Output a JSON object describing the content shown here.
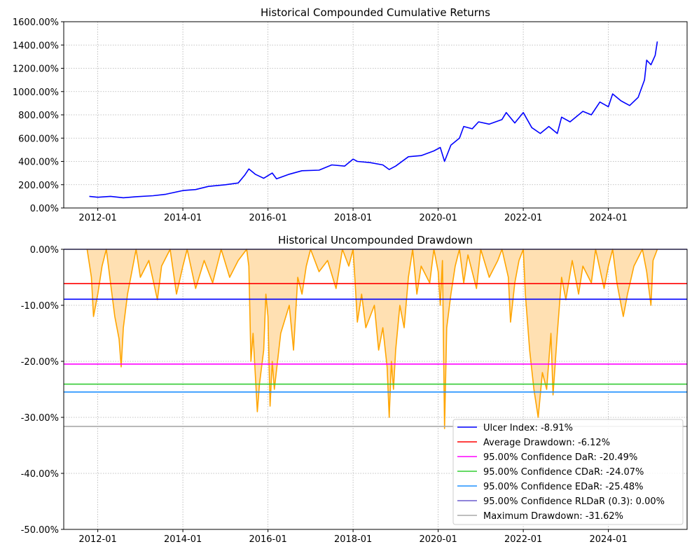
{
  "chart_data": [
    {
      "type": "line",
      "title": "Historical Compounded Cumulative Returns",
      "xlabel": "",
      "ylabel": "",
      "xlim": [
        2011.2,
        2025.85
      ],
      "ylim": [
        0,
        1600
      ],
      "grid": true,
      "color": "#0000ff",
      "x_ticks": [
        {
          "v": 2012,
          "label": "2012-01"
        },
        {
          "v": 2014,
          "label": "2014-01"
        },
        {
          "v": 2016,
          "label": "2016-01"
        },
        {
          "v": 2018,
          "label": "2018-01"
        },
        {
          "v": 2020,
          "label": "2020-01"
        },
        {
          "v": 2022,
          "label": "2022-01"
        },
        {
          "v": 2024,
          "label": "2024-01"
        }
      ],
      "y_ticks": [
        {
          "v": 0,
          "label": "0.00%"
        },
        {
          "v": 200,
          "label": "200.00%"
        },
        {
          "v": 400,
          "label": "400.00%"
        },
        {
          "v": 600,
          "label": "600.00%"
        },
        {
          "v": 800,
          "label": "800.00%"
        },
        {
          "v": 1000,
          "label": "1000.00%"
        },
        {
          "v": 1200,
          "label": "1200.00%"
        },
        {
          "v": 1400,
          "label": "1400.00%"
        },
        {
          "v": 1600,
          "label": "1600.00%"
        }
      ],
      "x": [
        2011.8,
        2012.0,
        2012.3,
        2012.6,
        2012.9,
        2013.3,
        2013.6,
        2014.0,
        2014.3,
        2014.6,
        2015.0,
        2015.3,
        2015.45,
        2015.55,
        2015.7,
        2015.9,
        2016.1,
        2016.2,
        2016.5,
        2016.8,
        2017.2,
        2017.5,
        2017.8,
        2018.0,
        2018.1,
        2018.4,
        2018.7,
        2018.85,
        2019.0,
        2019.3,
        2019.6,
        2019.9,
        2020.05,
        2020.15,
        2020.3,
        2020.5,
        2020.6,
        2020.8,
        2020.95,
        2021.2,
        2021.5,
        2021.6,
        2021.8,
        2022.0,
        2022.2,
        2022.4,
        2022.6,
        2022.8,
        2022.9,
        2023.1,
        2023.4,
        2023.6,
        2023.8,
        2024.0,
        2024.1,
        2024.3,
        2024.5,
        2024.7,
        2024.85,
        2024.9,
        2025.0,
        2025.1,
        2025.15
      ],
      "y": [
        100,
        92,
        100,
        88,
        97,
        105,
        118,
        150,
        158,
        185,
        200,
        215,
        280,
        335,
        290,
        255,
        300,
        250,
        290,
        320,
        325,
        370,
        360,
        420,
        400,
        390,
        370,
        330,
        360,
        440,
        450,
        490,
        520,
        400,
        540,
        600,
        700,
        680,
        740,
        720,
        760,
        820,
        730,
        820,
        690,
        640,
        700,
        640,
        780,
        740,
        830,
        800,
        910,
        870,
        980,
        920,
        880,
        950,
        1100,
        1270,
        1230,
        1310,
        1430
      ]
    },
    {
      "type": "area",
      "title": "Historical Uncompounded Drawdown",
      "xlabel": "",
      "ylabel": "",
      "xlim": [
        2011.2,
        2025.85
      ],
      "ylim": [
        -50,
        0
      ],
      "grid": true,
      "color": "#ffa500",
      "fill": "#ffe0b2",
      "x_ticks": [
        {
          "v": 2012,
          "label": "2012-01"
        },
        {
          "v": 2014,
          "label": "2014-01"
        },
        {
          "v": 2016,
          "label": "2016-01"
        },
        {
          "v": 2018,
          "label": "2018-01"
        },
        {
          "v": 2020,
          "label": "2020-01"
        },
        {
          "v": 2022,
          "label": "2022-01"
        },
        {
          "v": 2024,
          "label": "2024-01"
        }
      ],
      "y_ticks": [
        {
          "v": 0,
          "label": "0.00%"
        },
        {
          "v": -10,
          "label": "-10.00%"
        },
        {
          "v": -20,
          "label": "-20.00%"
        },
        {
          "v": -30,
          "label": "-30.00%"
        },
        {
          "v": -40,
          "label": "-40.00%"
        },
        {
          "v": -50,
          "label": "-50.00%"
        }
      ],
      "x": [
        2011.75,
        2011.85,
        2011.9,
        2012.0,
        2012.1,
        2012.2,
        2012.3,
        2012.4,
        2012.5,
        2012.55,
        2012.6,
        2012.7,
        2012.8,
        2012.9,
        2013.0,
        2013.2,
        2013.4,
        2013.5,
        2013.7,
        2013.85,
        2014.0,
        2014.1,
        2014.3,
        2014.5,
        2014.7,
        2014.9,
        2015.1,
        2015.3,
        2015.5,
        2015.55,
        2015.6,
        2015.65,
        2015.75,
        2015.8,
        2015.9,
        2015.95,
        2016.0,
        2016.05,
        2016.1,
        2016.15,
        2016.3,
        2016.5,
        2016.6,
        2016.7,
        2016.8,
        2016.9,
        2017.0,
        2017.2,
        2017.4,
        2017.6,
        2017.75,
        2017.9,
        2018.0,
        2018.05,
        2018.1,
        2018.2,
        2018.3,
        2018.5,
        2018.6,
        2018.7,
        2018.8,
        2018.85,
        2018.9,
        2018.95,
        2019.0,
        2019.1,
        2019.2,
        2019.3,
        2019.4,
        2019.5,
        2019.6,
        2019.8,
        2019.9,
        2020.0,
        2020.05,
        2020.1,
        2020.15,
        2020.2,
        2020.3,
        2020.4,
        2020.5,
        2020.6,
        2020.7,
        2020.9,
        2021.0,
        2021.2,
        2021.4,
        2021.5,
        2021.65,
        2021.7,
        2021.8,
        2021.9,
        2022.0,
        2022.05,
        2022.15,
        2022.25,
        2022.35,
        2022.45,
        2022.55,
        2022.65,
        2022.7,
        2022.8,
        2022.9,
        2023.0,
        2023.15,
        2023.3,
        2023.4,
        2023.6,
        2023.7,
        2023.9,
        2024.0,
        2024.1,
        2024.2,
        2024.35,
        2024.45,
        2024.6,
        2024.8,
        2024.9,
        2025.0,
        2025.05,
        2025.15
      ],
      "y": [
        0,
        -5,
        -12,
        -8,
        -3,
        0,
        -6,
        -12,
        -16,
        -21,
        -14,
        -8,
        -4,
        0,
        -5,
        -2,
        -9,
        -3,
        0,
        -8,
        -3,
        0,
        -7,
        -2,
        -6,
        0,
        -5,
        -2,
        0,
        -3,
        -20,
        -15,
        -29,
        -24,
        -18,
        -8,
        -12,
        -28,
        -20,
        -25,
        -15,
        -10,
        -18,
        -5,
        -8,
        -3,
        0,
        -4,
        -2,
        -7,
        0,
        -3,
        0,
        -6,
        -13,
        -8,
        -14,
        -10,
        -18,
        -14,
        -21,
        -30,
        -20,
        -25,
        -18,
        -10,
        -14,
        -5,
        0,
        -8,
        -3,
        -6,
        0,
        -4,
        -10,
        -2,
        -32,
        -14,
        -8,
        -3,
        0,
        -6,
        -1,
        -7,
        0,
        -5,
        -2,
        0,
        -5,
        -13,
        -6,
        -2,
        0,
        -8,
        -18,
        -25,
        -30,
        -22,
        -25,
        -15,
        -26,
        -15,
        -5,
        -9,
        -2,
        -8,
        -3,
        -6,
        0,
        -7,
        -3,
        0,
        -6,
        -12,
        -8,
        -3,
        0,
        -4,
        -10,
        -2,
        0
      ],
      "hlines": [
        {
          "label": "Ulcer Index: -8.91%",
          "value": -8.91,
          "color": "#0000ff"
        },
        {
          "label": "Average Drawdown: -6.12%",
          "value": -6.12,
          "color": "#ff0000"
        },
        {
          "label": "95.00% Confidence DaR: -20.49%",
          "value": -20.49,
          "color": "#ff00ff"
        },
        {
          "label": "95.00% Confidence CDaR: -24.07%",
          "value": -24.07,
          "color": "#32cd32"
        },
        {
          "label": "95.00% Confidence EDaR: -25.48%",
          "value": -25.48,
          "color": "#1e90ff"
        },
        {
          "label": "95.00% Confidence RLDaR (0.3): 0.00%",
          "value": 0.0,
          "color": "#6a5acd"
        },
        {
          "label": "Maximum Drawdown: -31.62%",
          "value": -31.62,
          "color": "#a9a9a9"
        }
      ],
      "legend_position": "lower-right"
    }
  ]
}
